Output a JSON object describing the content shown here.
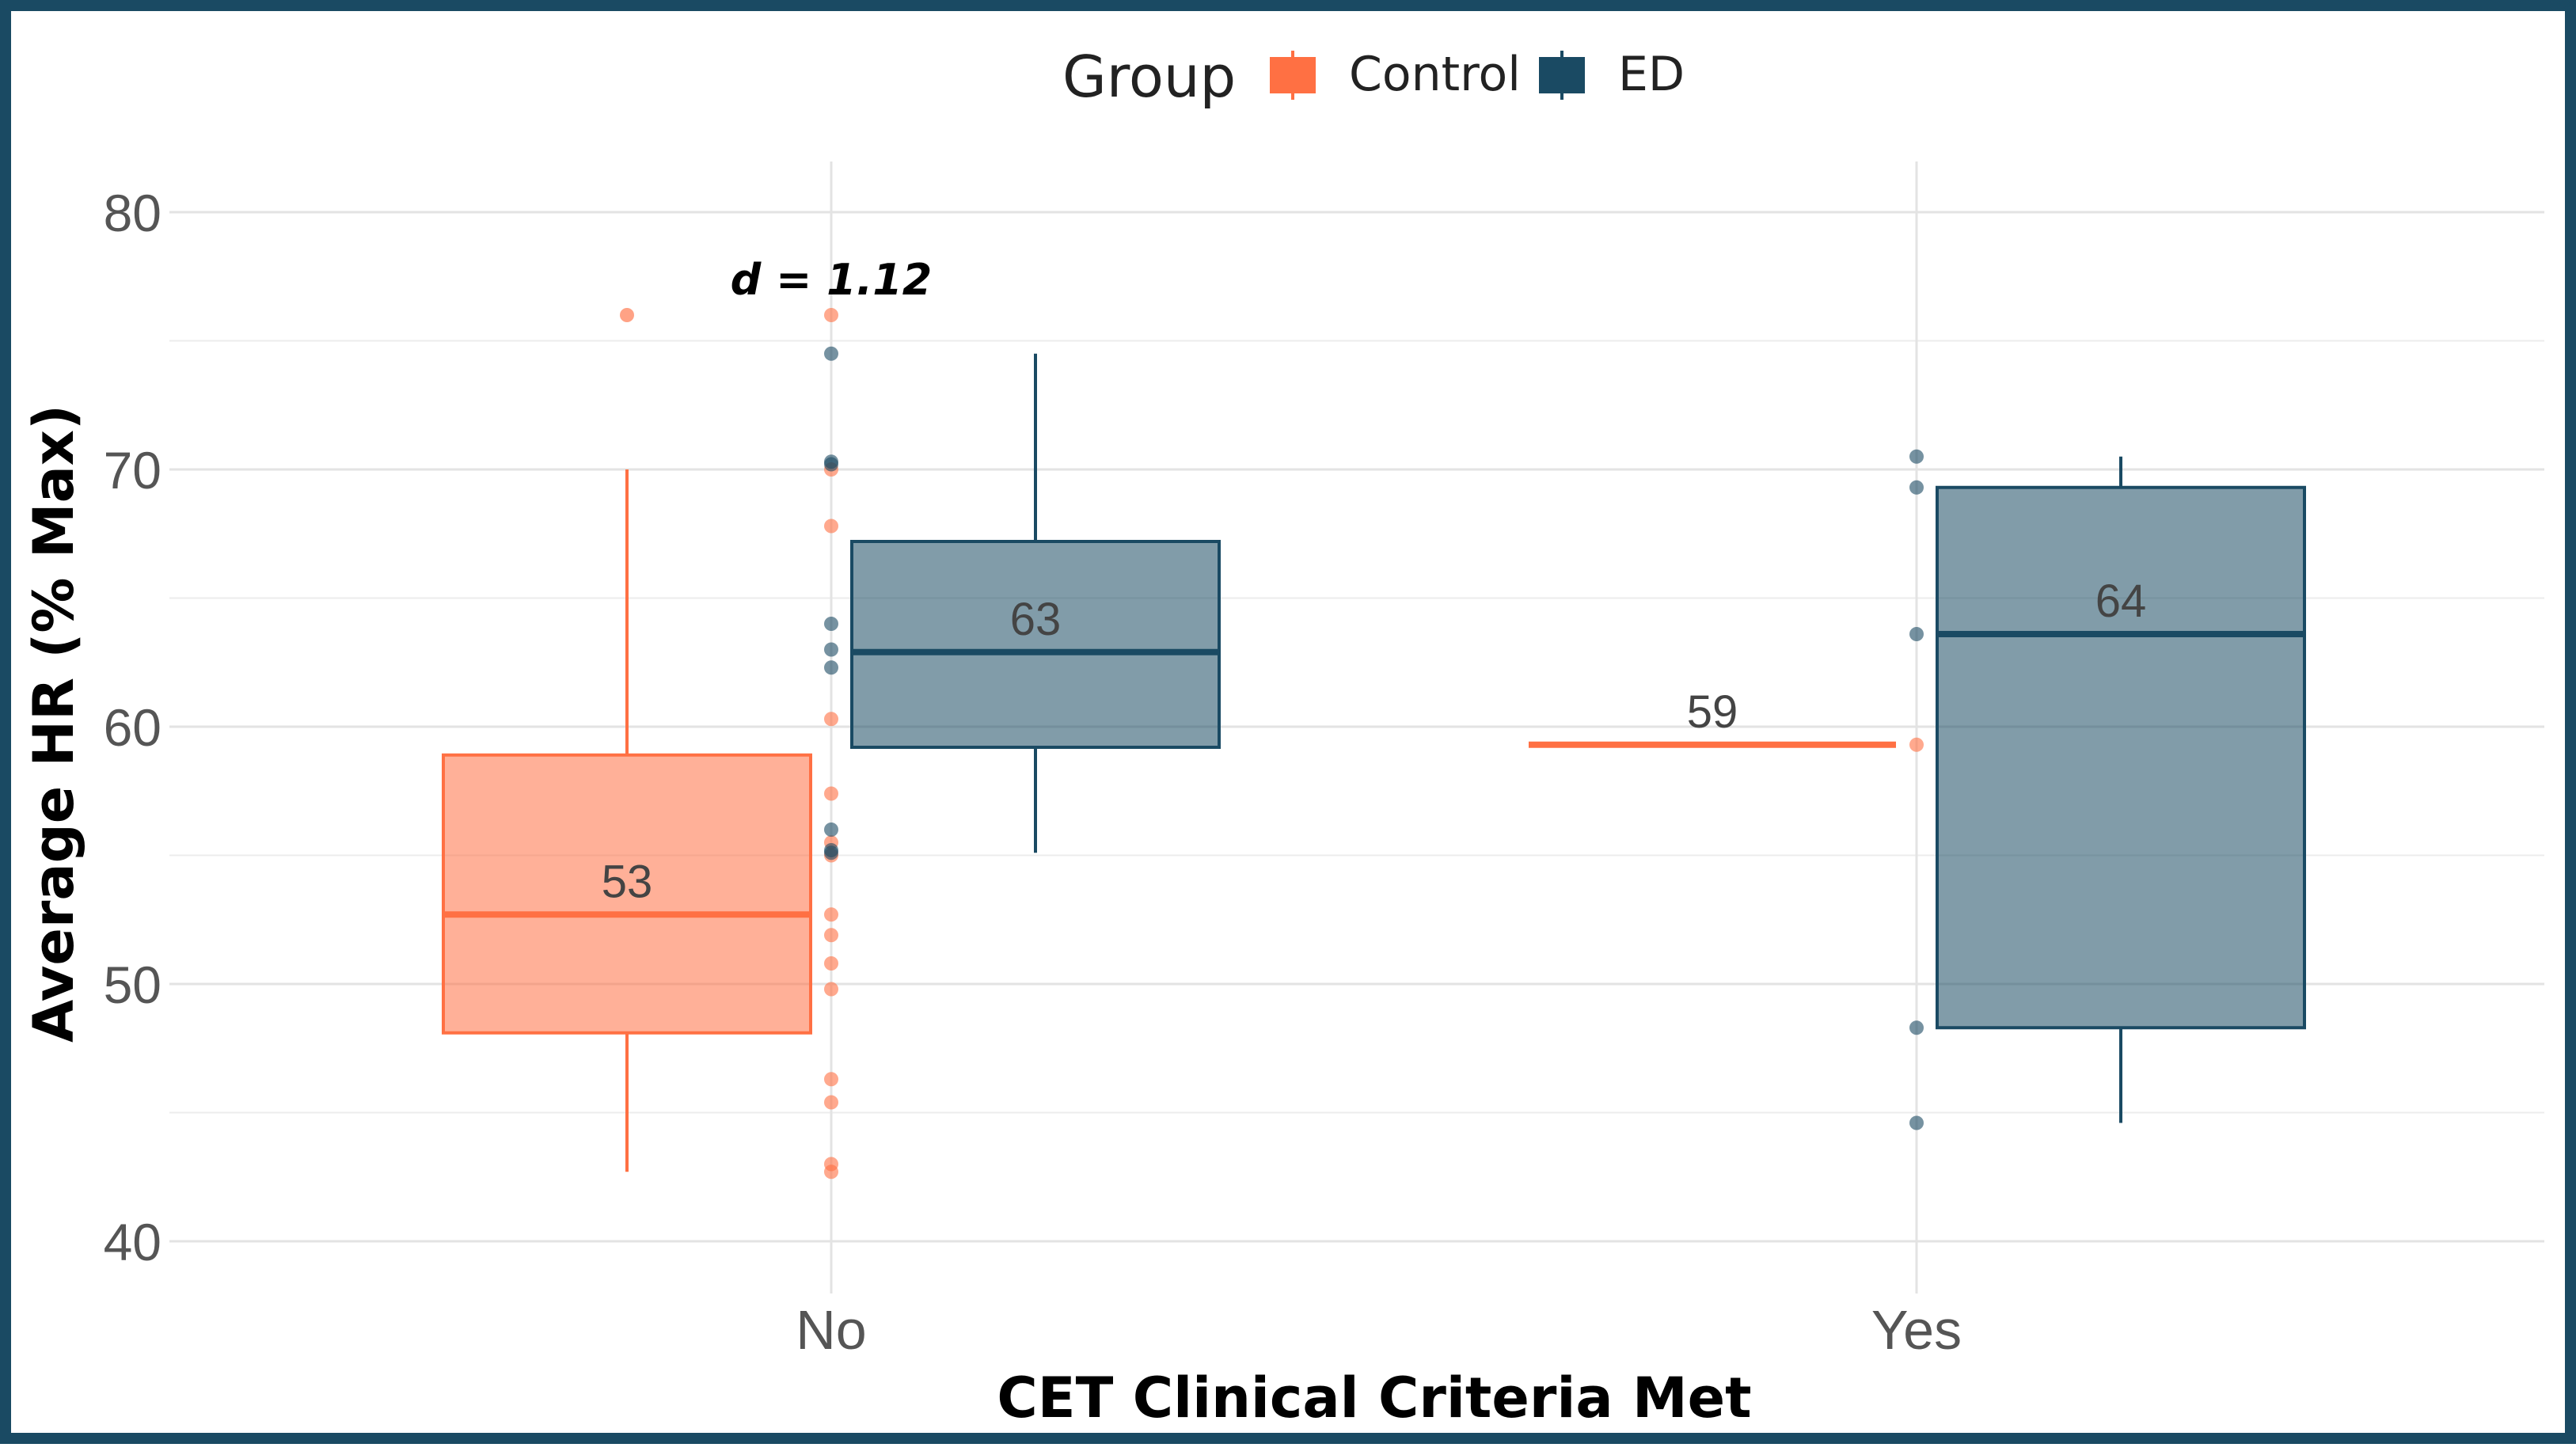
{
  "chart_data": {
    "type": "box",
    "xlabel": "CET Clinical Criteria Met",
    "ylabel": "Average HR (% Max)",
    "ylim": [
      38,
      82
    ],
    "yticks": [
      40,
      50,
      60,
      70,
      80
    ],
    "categories": [
      "No",
      "Yes"
    ],
    "legend": {
      "title": "Group",
      "placement": "top-center",
      "entries": [
        {
          "name": "Control",
          "color": "#ff7043"
        },
        {
          "name": "ED",
          "color": "#1a4a63"
        }
      ]
    },
    "grid": true,
    "series": [
      {
        "name": "Control",
        "color": "#ff7043",
        "boxes": [
          {
            "category": "No",
            "whisker_low": 42.7,
            "q1": 48.1,
            "median": 52.7,
            "q3": 58.9,
            "whisker_high": 70.0,
            "label": "53",
            "outliers": [
              76.0
            ]
          },
          {
            "category": "Yes",
            "whisker_low": 59.3,
            "q1": 59.3,
            "median": 59.3,
            "q3": 59.3,
            "whisker_high": 59.3,
            "label": "59",
            "outliers": []
          }
        ],
        "points": [
          {
            "category": "No",
            "values": [
              76.0,
              70.0,
              67.8,
              60.3,
              57.4,
              55.5,
              55.0,
              52.7,
              51.9,
              50.8,
              49.8,
              46.3,
              45.4,
              43.0,
              42.7
            ]
          },
          {
            "category": "Yes",
            "values": [
              59.3
            ]
          }
        ]
      },
      {
        "name": "ED",
        "color": "#1a4a63",
        "boxes": [
          {
            "category": "No",
            "whisker_low": 55.1,
            "q1": 59.2,
            "median": 62.9,
            "q3": 67.2,
            "whisker_high": 74.5,
            "label": "63",
            "outliers": []
          },
          {
            "category": "Yes",
            "whisker_low": 44.6,
            "q1": 48.3,
            "median": 63.6,
            "q3": 69.3,
            "whisker_high": 70.5,
            "label": "64",
            "outliers": []
          }
        ],
        "points": [
          {
            "category": "No",
            "values": [
              74.5,
              70.3,
              70.2,
              64.0,
              63.0,
              62.3,
              56.0,
              55.2,
              55.1
            ]
          },
          {
            "category": "Yes",
            "values": [
              70.5,
              69.3,
              63.6,
              48.3,
              44.6
            ]
          }
        ]
      }
    ],
    "annotations": [
      {
        "text": "d = 1.12",
        "category": "No",
        "y": 76.8
      }
    ]
  }
}
